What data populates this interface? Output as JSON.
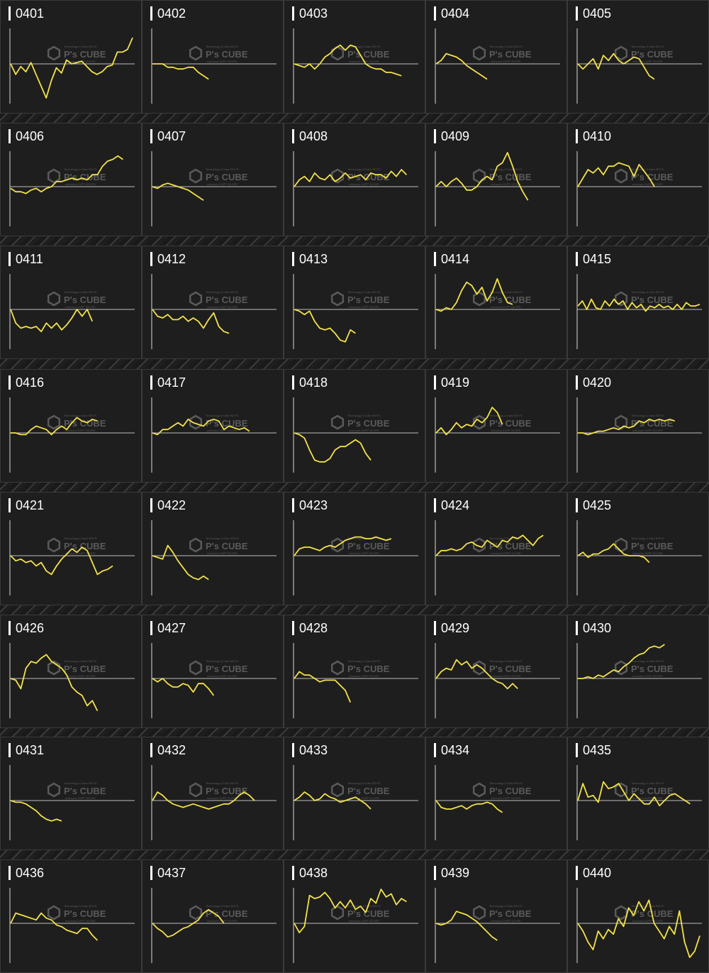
{
  "watermark": {
    "brand": "P's CUBE",
    "top_text": "Technology & Data SEIYS",
    "bottom_text": "unknown ZUPP SCOPE"
  },
  "colors": {
    "line": "#f2e24a",
    "baseline": "#bdbdbd",
    "axis": "#9a9a9a",
    "panel": "#1e1e1e"
  },
  "panels": [
    {
      "id": "0401",
      "values": [
        0,
        -8,
        -2,
        -6,
        1,
        -8,
        -17,
        -26,
        -13,
        -3,
        -7,
        3,
        0,
        1,
        2,
        -2,
        -6,
        -8,
        -6,
        -2,
        -1,
        9,
        9,
        11,
        20
      ]
    },
    {
      "id": "0402",
      "values": [
        0,
        0,
        0,
        -2,
        -2,
        -3,
        -3,
        -2,
        -2,
        -5,
        -7,
        -9
      ]
    },
    {
      "id": "0403",
      "values": [
        0,
        -1,
        -2,
        0,
        -3,
        0,
        4,
        6,
        9,
        11,
        8,
        11,
        10,
        5,
        0,
        -2,
        -3,
        -3,
        -5,
        -5,
        -6,
        -7
      ]
    },
    {
      "id": "0404",
      "values": [
        0,
        2,
        6,
        5,
        4,
        2,
        -1,
        -3,
        -5,
        -7,
        -9
      ]
    },
    {
      "id": "0405",
      "values": [
        0,
        -3,
        0,
        3,
        -3,
        5,
        2,
        6,
        2,
        0,
        2,
        4,
        3,
        -2,
        -7,
        -9
      ]
    },
    {
      "id": "0406",
      "values": [
        -1,
        -3,
        -3,
        -4,
        -2,
        -1,
        -3,
        -1,
        0,
        3,
        3,
        4,
        5,
        4,
        5,
        4,
        7,
        7,
        12,
        15,
        16,
        18,
        16
      ]
    },
    {
      "id": "0407",
      "values": [
        0,
        -1,
        1,
        2,
        1,
        0,
        -1,
        -2,
        -4,
        -6,
        -8
      ]
    },
    {
      "id": "0408",
      "values": [
        0,
        4,
        6,
        3,
        8,
        5,
        4,
        7,
        3,
        5,
        8,
        5,
        6,
        7,
        4,
        8,
        7,
        7,
        5,
        9,
        6,
        10,
        7
      ]
    },
    {
      "id": "0409",
      "values": [
        0,
        3,
        0,
        3,
        5,
        2,
        -2,
        -2,
        0,
        4,
        6,
        4,
        12,
        14,
        20,
        12,
        3,
        -3,
        -8
      ]
    },
    {
      "id": "0410",
      "values": [
        0,
        5,
        10,
        8,
        11,
        7,
        12,
        12,
        14,
        13,
        12,
        6,
        13,
        9,
        5,
        0
      ]
    },
    {
      "id": "0411",
      "values": [
        0,
        -8,
        -11,
        -10,
        -11,
        -10,
        -13,
        -8,
        -11,
        -8,
        -12,
        -9,
        -5,
        0,
        -4,
        0,
        -7
      ]
    },
    {
      "id": "0412",
      "values": [
        0,
        -4,
        -5,
        -3,
        -6,
        -6,
        -4,
        -7,
        -5,
        -7,
        -11,
        -6,
        -2,
        -10,
        -13,
        -14
      ]
    },
    {
      "id": "0413",
      "values": [
        0,
        -1,
        -3,
        -1,
        -7,
        -11,
        -12,
        -11,
        -14,
        -18,
        -19,
        -12,
        -14
      ]
    },
    {
      "id": "0414",
      "values": [
        0,
        -1,
        1,
        0,
        4,
        11,
        16,
        14,
        9,
        13,
        5,
        10,
        18,
        10,
        4,
        3
      ]
    },
    {
      "id": "0415",
      "values": [
        2,
        5,
        0,
        6,
        1,
        0,
        5,
        2,
        6,
        3,
        5,
        0,
        4,
        1,
        3,
        -1,
        2,
        1,
        3,
        1,
        2,
        0,
        3,
        0,
        4,
        2,
        2,
        3
      ]
    },
    {
      "id": "0416",
      "values": [
        0,
        0,
        -1,
        -1,
        2,
        4,
        3,
        2,
        -1,
        2,
        4,
        2,
        6,
        9,
        7,
        6,
        8,
        7
      ]
    },
    {
      "id": "0417",
      "values": [
        0,
        -1,
        2,
        2,
        4,
        6,
        4,
        8,
        6,
        5,
        4,
        7,
        8,
        7,
        2,
        4,
        3,
        2,
        3,
        1
      ]
    },
    {
      "id": "0418",
      "values": [
        0,
        -1,
        -3,
        -10,
        -16,
        -17,
        -17,
        -15,
        -10,
        -8,
        -8,
        -6,
        -4,
        -6,
        -12,
        -16
      ]
    },
    {
      "id": "0419",
      "values": [
        0,
        3,
        -1,
        2,
        6,
        3,
        5,
        4,
        8,
        6,
        9,
        15,
        12,
        5
      ]
    },
    {
      "id": "0420",
      "values": [
        0,
        0,
        -1,
        0,
        1,
        1,
        2,
        3,
        2,
        4,
        3,
        4,
        7,
        6,
        8,
        7,
        8,
        7,
        8,
        7
      ]
    },
    {
      "id": "0421",
      "values": [
        0,
        -3,
        -2,
        -4,
        -3,
        -6,
        -4,
        -9,
        -11,
        -6,
        -2,
        1,
        4,
        2,
        5,
        3,
        -4,
        -11,
        -9,
        -8,
        -6
      ]
    },
    {
      "id": "0422",
      "values": [
        0,
        -1,
        -2,
        6,
        2,
        -3,
        -7,
        -11,
        -13,
        -14,
        -12,
        -14
      ]
    },
    {
      "id": "0423",
      "values": [
        0,
        4,
        5,
        5,
        4,
        3,
        5,
        6,
        5,
        7,
        9,
        10,
        11,
        11,
        10,
        10,
        11,
        10,
        9,
        10
      ]
    },
    {
      "id": "0424",
      "values": [
        0,
        3,
        3,
        4,
        3,
        4,
        7,
        8,
        6,
        5,
        9,
        7,
        5,
        9,
        8,
        11,
        10,
        12,
        9,
        6,
        10,
        12
      ]
    },
    {
      "id": "0425",
      "values": [
        0,
        2,
        -1,
        1,
        1,
        3,
        4,
        7,
        4,
        1,
        0,
        0,
        0,
        -1,
        -4
      ]
    },
    {
      "id": "0426",
      "values": [
        0,
        -1,
        -6,
        6,
        10,
        9,
        12,
        14,
        10,
        8,
        6,
        2,
        -5,
        -8,
        -10,
        -16,
        -13,
        -19
      ]
    },
    {
      "id": "0427",
      "values": [
        0,
        -2,
        0,
        -3,
        -5,
        -5,
        -3,
        -4,
        -8,
        -3,
        -3,
        -6,
        -10
      ]
    },
    {
      "id": "0428",
      "values": [
        0,
        4,
        2,
        2,
        0,
        -2,
        -1,
        -1,
        -1,
        -4,
        -7,
        -14
      ]
    },
    {
      "id": "0429",
      "values": [
        0,
        4,
        6,
        5,
        11,
        8,
        10,
        6,
        8,
        6,
        3,
        0,
        -2,
        -3,
        -6,
        -3,
        -6
      ]
    },
    {
      "id": "0430",
      "values": [
        0,
        0,
        1,
        0,
        2,
        1,
        3,
        5,
        4,
        7,
        9,
        12,
        14,
        15,
        18,
        19,
        18,
        20
      ]
    },
    {
      "id": "0431",
      "values": [
        0,
        -1,
        -1,
        -2,
        -4,
        -6,
        -9,
        -11,
        -12,
        -11,
        -12
      ]
    },
    {
      "id": "0432",
      "values": [
        0,
        5,
        3,
        0,
        -2,
        -3,
        -4,
        -3,
        -2,
        -3,
        -4,
        -5,
        -4,
        -3,
        -2,
        -2,
        0,
        3,
        5,
        3,
        0
      ]
    },
    {
      "id": "0433",
      "values": [
        0,
        2,
        5,
        3,
        0,
        1,
        4,
        2,
        1,
        -1,
        0,
        1,
        2,
        0,
        -2,
        -5
      ]
    },
    {
      "id": "0434",
      "values": [
        0,
        -4,
        -5,
        -5,
        -4,
        -3,
        -5,
        -3,
        -2,
        -2,
        -1,
        -2,
        -5,
        -7
      ]
    },
    {
      "id": "0435",
      "values": [
        0,
        10,
        2,
        3,
        -1,
        11,
        7,
        8,
        10,
        5,
        0,
        4,
        1,
        -2,
        -2,
        2,
        -3,
        0,
        3,
        4,
        2,
        0,
        -2
      ]
    },
    {
      "id": "0436",
      "values": [
        0,
        6,
        5,
        4,
        3,
        2,
        6,
        3,
        2,
        -1,
        -2,
        -4,
        -5,
        -6,
        -3,
        -3,
        -7,
        -10
      ]
    },
    {
      "id": "0437",
      "values": [
        0,
        -3,
        -5,
        -8,
        -7,
        -5,
        -3,
        -2,
        0,
        2,
        6,
        8,
        6,
        4,
        0
      ]
    },
    {
      "id": "0438",
      "values": [
        0,
        -6,
        -2,
        18,
        16,
        17,
        20,
        16,
        10,
        14,
        10,
        15,
        9,
        11,
        7,
        16,
        13,
        22,
        17,
        19,
        12,
        16,
        14
      ]
    },
    {
      "id": "0439",
      "values": [
        0,
        -1,
        0,
        2,
        7,
        6,
        5,
        3,
        1,
        -2,
        -5,
        -8,
        -10
      ]
    },
    {
      "id": "0440",
      "values": [
        0,
        -5,
        -12,
        -17,
        -5,
        -10,
        -4,
        -7,
        3,
        -2,
        10,
        5,
        14,
        8,
        15,
        0,
        -5,
        -10,
        -2,
        -7,
        8,
        -12,
        -22,
        -18,
        -8
      ]
    }
  ]
}
